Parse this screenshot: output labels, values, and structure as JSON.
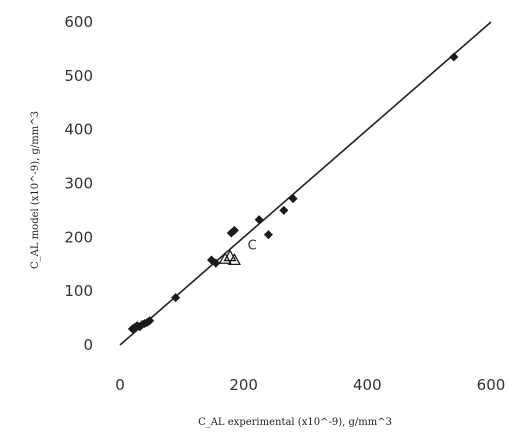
{
  "chart_data": {
    "type": "scatter",
    "xlabel": "C_AL experimental (x10^-9), g/mm^3",
    "ylabel": "C_AL model (x10^-9), g/mm^3",
    "xlim": [
      0,
      600
    ],
    "ylim": [
      0,
      600
    ],
    "x_ticks": [
      "0",
      "200",
      "400",
      "600"
    ],
    "y_ticks": [
      "0",
      "100",
      "200",
      "300",
      "400",
      "500",
      "600"
    ],
    "grid": false,
    "reference_line": {
      "type": "y=x",
      "from": [
        0,
        0
      ],
      "to": [
        600,
        600
      ]
    },
    "annotations": [
      {
        "text": "C",
        "x": 200,
        "y": 185
      }
    ],
    "series": [
      {
        "marker": "diamond",
        "x": [
          20,
          24,
          28,
          32,
          36,
          40,
          44,
          48,
          90,
          148,
          155,
          180,
          185,
          225,
          240,
          265,
          280,
          540
        ],
        "y": [
          30,
          33,
          36,
          34,
          38,
          40,
          42,
          45,
          88,
          158,
          152,
          208,
          213,
          233,
          205,
          250,
          272,
          535
        ]
      },
      {
        "marker": "triangle-open",
        "x": [
          170,
          178,
          185
        ],
        "y": [
          160,
          165,
          158
        ]
      }
    ]
  }
}
